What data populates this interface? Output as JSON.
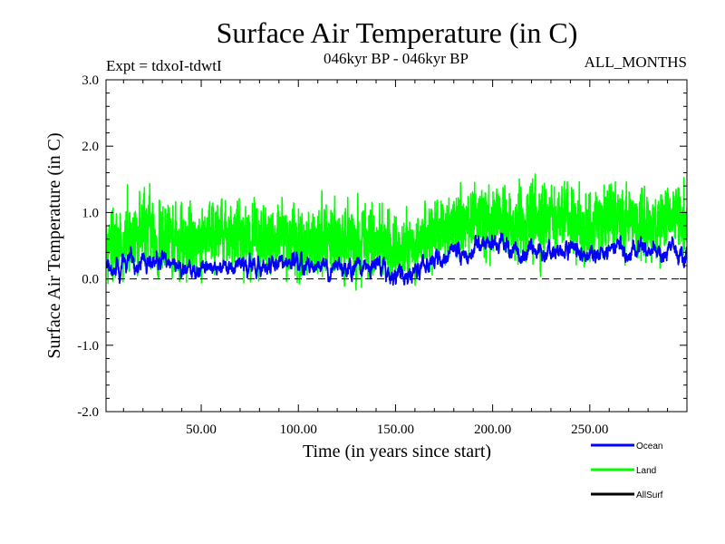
{
  "chart_data": {
    "type": "line",
    "title": "Surface Air Temperature (in C)",
    "subtitle_left": "Expt = tdxoI-tdwtI",
    "subtitle_center": "046kyr BP - 046kyr BP",
    "subtitle_right": "ALL_MONTHS",
    "xlabel": "Time (in years since start)",
    "ylabel": "Surface Air Temperature (in C)",
    "xlim": [
      1,
      300
    ],
    "ylim": [
      -2.0,
      3.0
    ],
    "x_ticks": [
      50,
      100,
      150,
      200,
      250
    ],
    "x_tick_labels": [
      "50.00",
      "100.00",
      "150.00",
      "200.00",
      "250.00"
    ],
    "y_ticks": [
      -2.0,
      -1.0,
      0.0,
      1.0,
      2.0,
      3.0
    ],
    "y_tick_labels": [
      "-2.0",
      "-1.0",
      "0.0",
      "1.0",
      "2.0",
      "3.0"
    ],
    "reference_line": {
      "y": 0.0,
      "style": "dashed"
    },
    "grid": false,
    "legend_position": "bottom-right, below plot",
    "series": [
      {
        "name": "Land",
        "color": "#00ff00",
        "x": [
          1,
          10,
          20,
          30,
          40,
          50,
          60,
          70,
          80,
          90,
          100,
          110,
          120,
          130,
          140,
          150,
          160,
          170,
          180,
          190,
          200,
          210,
          220,
          230,
          240,
          250,
          260,
          270,
          280,
          290,
          300
        ],
        "values": [
          0.45,
          0.6,
          0.7,
          0.6,
          0.55,
          0.65,
          0.7,
          0.6,
          0.55,
          0.6,
          0.5,
          0.55,
          0.55,
          0.6,
          0.5,
          0.45,
          0.55,
          0.7,
          0.8,
          0.9,
          0.85,
          0.8,
          0.85,
          0.95,
          0.85,
          0.75,
          0.95,
          0.9,
          0.8,
          0.9,
          0.85
        ]
      },
      {
        "name": "Ocean",
        "color": "#0000ff",
        "x": [
          1,
          10,
          20,
          30,
          40,
          50,
          60,
          70,
          80,
          90,
          100,
          110,
          120,
          130,
          140,
          150,
          160,
          170,
          180,
          190,
          200,
          210,
          220,
          230,
          240,
          250,
          260,
          270,
          280,
          290,
          300
        ],
        "values": [
          0.2,
          0.2,
          0.2,
          0.25,
          0.15,
          0.15,
          0.15,
          0.25,
          0.2,
          0.25,
          0.25,
          0.2,
          0.15,
          0.15,
          0.25,
          0.05,
          0.15,
          0.25,
          0.35,
          0.45,
          0.5,
          0.45,
          0.4,
          0.45,
          0.45,
          0.35,
          0.4,
          0.4,
          0.45,
          0.4,
          0.4
        ]
      },
      {
        "name": "AllSurf",
        "color": "#000000",
        "x": [],
        "values": []
      }
    ]
  }
}
